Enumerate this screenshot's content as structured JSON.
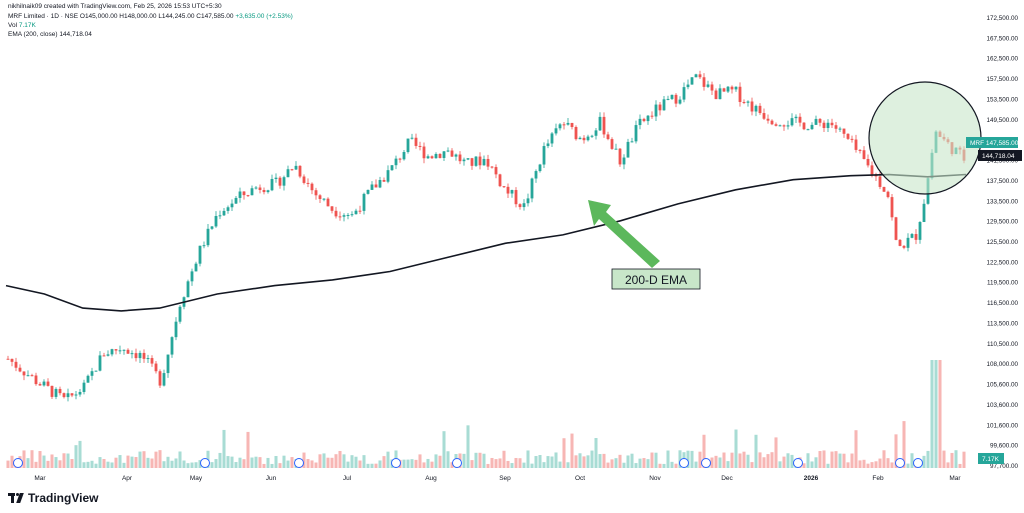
{
  "header": {
    "attribution": "nikhilnaik09 created with TradingView.com, Feb 25, 2026 15:53 UTC+5:30",
    "ohlc_prefix": "MRF Limited · 1D · NSE",
    "ohlc": "O145,000.00 H148,000.00 L144,245.00 C147,585.00",
    "change": "+3,635.00 (+2.53%)",
    "vol_label": "Vol",
    "vol_value": "7.17K",
    "ema_label": "EMA (200, close)",
    "ema_value": "144,718.04"
  },
  "branding": {
    "logo_text": "TradingView"
  },
  "colors": {
    "up": "#26a69a",
    "down": "#ef5350",
    "vol_up": "#a8dcd4",
    "vol_down": "#f7b6b4",
    "ema": "#131722",
    "circle_fill": "#c8e6c9",
    "arrow": "#5cb85c",
    "label_bg": "#c8e6c9"
  },
  "chart_data": {
    "type": "candlestick",
    "symbol": "MRF",
    "timeframe": "1D",
    "yaxis_ticks": [
      "172,500.00",
      "167,500.00",
      "162,500.00",
      "157,500.00",
      "153,500.00",
      "149,500.00",
      "145,500.00",
      "141,500.00",
      "137,500.00",
      "133,500.00",
      "129,500.00",
      "125,500.00",
      "122,500.00",
      "119,500.00",
      "116,500.00",
      "113,500.00",
      "110,500.00",
      "108,000.00",
      "105,600.00",
      "103,600.00",
      "101,600.00",
      "99,600.00",
      "97,700.00"
    ],
    "xaxis_ticks": [
      "Mar",
      "Apr",
      "May",
      "Jun",
      "Jul",
      "Aug",
      "Sep",
      "Oct",
      "Nov",
      "Dec",
      "2026",
      "Feb",
      "Mar"
    ],
    "price_label": {
      "symbol": "MRF",
      "value": "147,585.00"
    },
    "ema_label_value": "144,718.04",
    "vol_label_value": "7.17K",
    "annotation": "200-D EMA",
    "price_path": [
      [
        0,
        112000
      ],
      [
        3,
        108000
      ],
      [
        6,
        104500
      ],
      [
        8,
        107000
      ],
      [
        10,
        113000
      ],
      [
        12,
        114000
      ],
      [
        14,
        112500
      ],
      [
        16,
        108000
      ],
      [
        18,
        122000
      ],
      [
        20,
        131000
      ],
      [
        22,
        138000
      ],
      [
        24,
        140500
      ],
      [
        26,
        142500
      ],
      [
        28,
        143000
      ],
      [
        30,
        146500
      ],
      [
        32,
        141500
      ],
      [
        34,
        138500
      ],
      [
        36,
        137500
      ],
      [
        38,
        142000
      ],
      [
        40,
        145500
      ],
      [
        42,
        150500
      ],
      [
        44,
        148000
      ],
      [
        46,
        149000
      ],
      [
        48,
        146500
      ],
      [
        50,
        147500
      ],
      [
        52,
        142000
      ],
      [
        54,
        139000
      ],
      [
        56,
        149000
      ],
      [
        58,
        154000
      ],
      [
        60,
        151000
      ],
      [
        62,
        154000
      ],
      [
        64,
        147000
      ],
      [
        66,
        153500
      ],
      [
        68,
        156500
      ],
      [
        70,
        158500
      ],
      [
        72,
        162000
      ],
      [
        74,
        159000
      ],
      [
        76,
        159500
      ],
      [
        78,
        156500
      ],
      [
        80,
        154500
      ],
      [
        82,
        154000
      ],
      [
        84,
        153500
      ],
      [
        86,
        154000
      ],
      [
        88,
        150500
      ],
      [
        90,
        146000
      ],
      [
        92,
        141500
      ],
      [
        93,
        131500
      ],
      [
        95,
        134000
      ],
      [
        96,
        141500
      ],
      [
        97,
        152500
      ],
      [
        98,
        150500
      ],
      [
        100,
        147585
      ]
    ],
    "ema_path": [
      [
        0,
        125000
      ],
      [
        4,
        123500
      ],
      [
        8,
        121000
      ],
      [
        12,
        120500
      ],
      [
        16,
        121000
      ],
      [
        22,
        123500
      ],
      [
        28,
        125000
      ],
      [
        34,
        126000
      ],
      [
        40,
        127500
      ],
      [
        46,
        130000
      ],
      [
        52,
        132500
      ],
      [
        58,
        134000
      ],
      [
        64,
        136500
      ],
      [
        70,
        139500
      ],
      [
        76,
        142000
      ],
      [
        82,
        143800
      ],
      [
        88,
        144500
      ],
      [
        92,
        144700
      ],
      [
        96,
        144300
      ],
      [
        100,
        144718
      ]
    ],
    "volume_highlights": [
      {
        "label": "spike",
        "x_pct": 97,
        "value_k": 45
      }
    ]
  }
}
